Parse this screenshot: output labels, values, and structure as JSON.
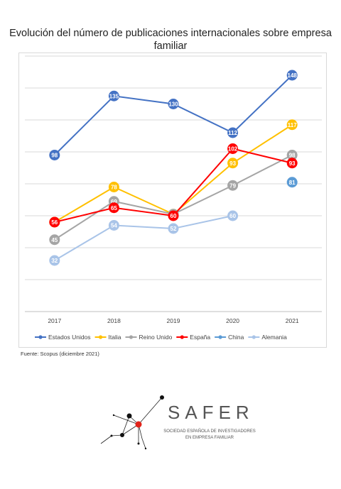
{
  "chart_data": {
    "type": "line",
    "title": "Evolución del número de publicaciones internacionales sobre empresa familiar",
    "categories": [
      "2017",
      "2018",
      "2019",
      "2020",
      "2021"
    ],
    "ylim": [
      0,
      160
    ],
    "grid": true,
    "legend_position": "bottom",
    "series": [
      {
        "name": "Estados Unidos",
        "color": "#4472C4",
        "values": [
          98,
          135,
          130,
          112,
          148
        ]
      },
      {
        "name": "Italia",
        "color": "#FFC000",
        "values": [
          56,
          78,
          61,
          93,
          117
        ]
      },
      {
        "name": "Reino Unido",
        "color": "#A5A5A5",
        "values": [
          45,
          69,
          61,
          79,
          98
        ]
      },
      {
        "name": "España",
        "color": "#FF0000",
        "values": [
          56,
          65,
          60,
          102,
          93
        ]
      },
      {
        "name": "China",
        "color": "#5B9BD5",
        "values": [
          null,
          null,
          null,
          null,
          81
        ]
      },
      {
        "name": "Alemania",
        "color": "#A9C4E8",
        "values": [
          32,
          54,
          52,
          60,
          null
        ]
      }
    ]
  },
  "source": "Fuente: Scopus (diciembre 2021)",
  "logo": {
    "word": "SAFER",
    "subtitle_line1": "SOCIEDAD ESPAÑOLA DE INVESTIGADORES",
    "subtitle_line2": "EN EMPRESA FAMILIAR",
    "accent_color": "#E2231A"
  }
}
